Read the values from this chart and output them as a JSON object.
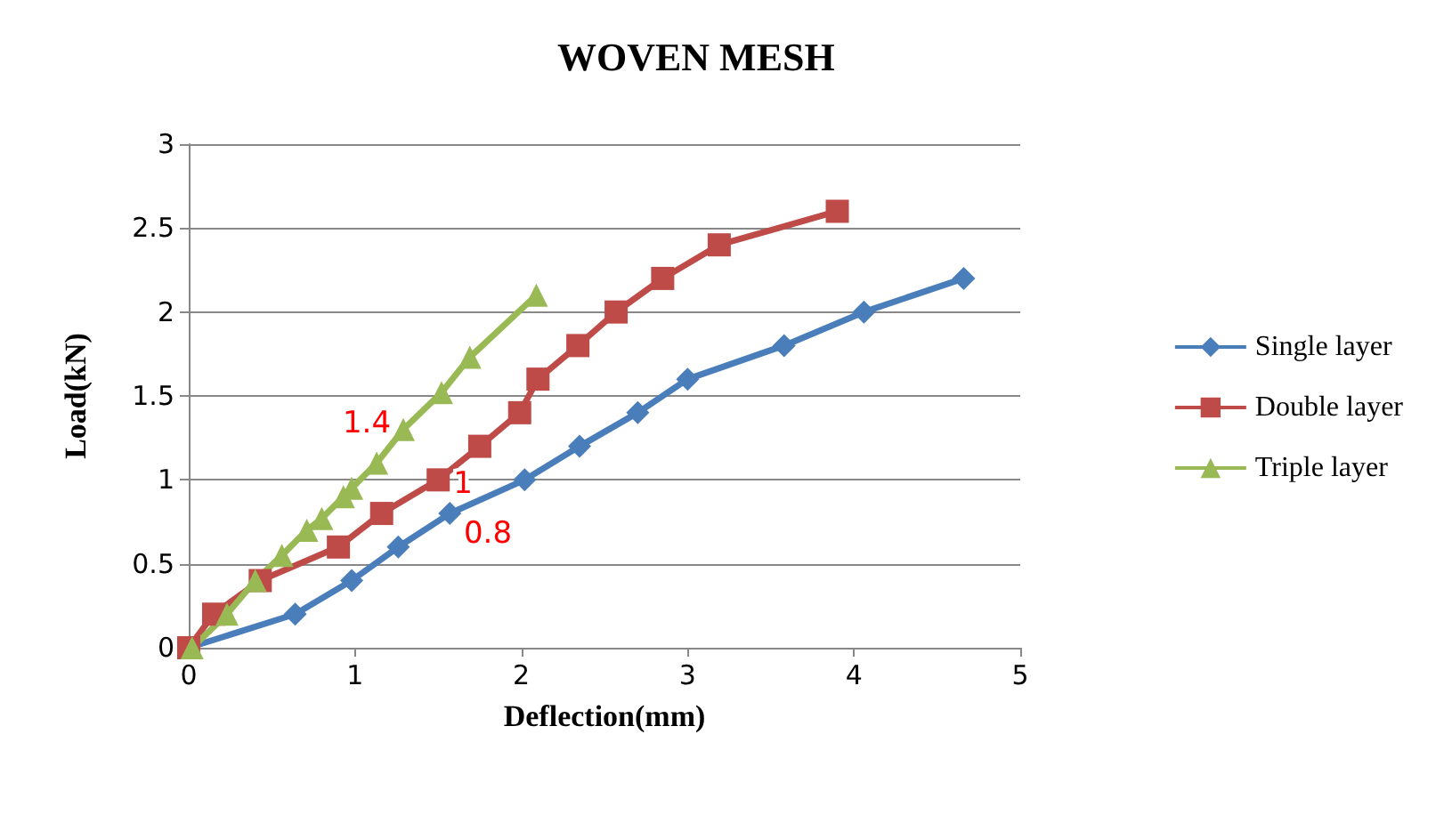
{
  "chart_data": {
    "type": "line",
    "title": "WOVEN MESH",
    "xlabel": "Deflection(mm)",
    "ylabel": "Load(kN)",
    "xlim": [
      0,
      5
    ],
    "xticks": [
      0,
      1,
      2,
      3,
      4,
      5
    ],
    "ylim": [
      0,
      3
    ],
    "yticks": [
      0,
      0.5,
      1,
      1.5,
      2,
      2.5,
      3
    ],
    "grid": "y",
    "legend": "right",
    "series": [
      {
        "name": "Single layer",
        "color": "#4a7ebb",
        "marker": "diamond",
        "x": [
          0,
          0.64,
          0.98,
          1.26,
          1.57,
          2.02,
          2.35,
          2.7,
          3.0,
          3.58,
          4.06,
          4.66
        ],
        "values": [
          0,
          0.2,
          0.4,
          0.6,
          0.8,
          1.0,
          1.2,
          1.4,
          1.6,
          1.8,
          2.0,
          2.2
        ]
      },
      {
        "name": "Double layer",
        "color": "#be4b48",
        "marker": "square",
        "x": [
          0,
          0.15,
          0.43,
          0.9,
          1.16,
          1.5,
          1.75,
          1.99,
          2.1,
          2.34,
          2.57,
          2.85,
          3.19,
          3.9
        ],
        "values": [
          0,
          0.2,
          0.4,
          0.6,
          0.8,
          1.0,
          1.2,
          1.4,
          1.6,
          1.8,
          2.0,
          2.2,
          2.4,
          2.6
        ]
      },
      {
        "name": "Triple layer",
        "color": "#98b954",
        "marker": "triangle",
        "x": [
          0.02,
          0.23,
          0.4,
          0.56,
          0.71,
          0.8,
          0.93,
          0.98,
          1.13,
          1.29,
          1.52,
          1.69,
          2.09
        ],
        "values": [
          0,
          0.2,
          0.4,
          0.55,
          0.7,
          0.77,
          0.9,
          0.95,
          1.1,
          1.3,
          1.52,
          1.73,
          2.1
        ]
      }
    ],
    "annotations": [
      "1.4",
      "1",
      "0.8"
    ]
  }
}
